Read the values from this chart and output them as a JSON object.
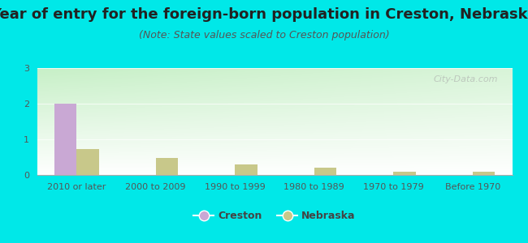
{
  "title": "Year of entry for the foreign-born population in Creston, Nebraska",
  "subtitle": "(Note: State values scaled to Creston population)",
  "categories": [
    "2010 or later",
    "2000 to 2009",
    "1990 to 1999",
    "1980 to 1989",
    "1970 to 1979",
    "Before 1970"
  ],
  "creston_values": [
    2.0,
    0.0,
    0.0,
    0.0,
    0.0,
    0.0
  ],
  "nebraska_values": [
    0.72,
    0.48,
    0.3,
    0.2,
    0.08,
    0.1
  ],
  "creston_color": "#c9a8d4",
  "nebraska_color": "#c8c88a",
  "bar_width": 0.28,
  "ylim": [
    0,
    3
  ],
  "yticks": [
    0,
    1,
    2,
    3
  ],
  "bg_color": "#00e8e8",
  "plot_bg_color_top": "#c8e8c8",
  "plot_bg_color_bottom": "#ffffff",
  "title_fontsize": 13,
  "subtitle_fontsize": 9,
  "tick_fontsize": 8,
  "legend_fontsize": 9,
  "watermark_text": "City-Data.com"
}
